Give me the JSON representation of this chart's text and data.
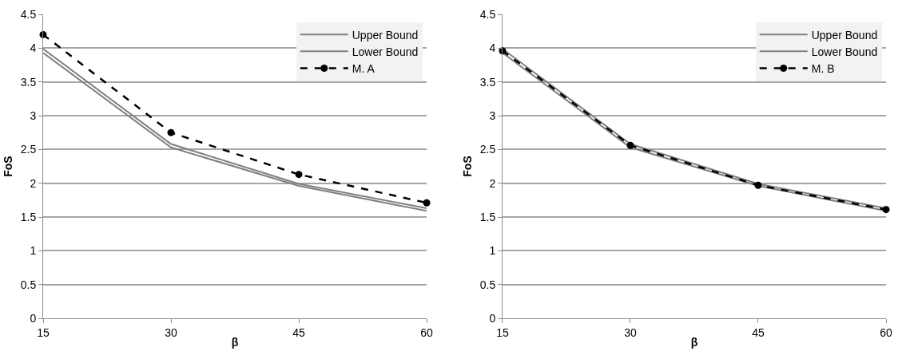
{
  "chart_data": [
    {
      "type": "line",
      "xlabel": "β",
      "ylabel": "FoS",
      "x": [
        15,
        30,
        45,
        60
      ],
      "xlim": [
        15,
        60
      ],
      "xticks": [
        15,
        30,
        45,
        60
      ],
      "ylim": [
        0,
        4.5
      ],
      "yticks": [
        0,
        0.5,
        1,
        1.5,
        2,
        2.5,
        3,
        3.5,
        4,
        4.5
      ],
      "grid": "y",
      "legend": "top right",
      "series": [
        {
          "name": "Upper Bound",
          "color": "#7f7f7f",
          "values": [
            3.99,
            2.58,
            1.99,
            1.63
          ],
          "marker": "none",
          "line_style": "solid"
        },
        {
          "name": "Lower Bound",
          "color": "#7f7f7f",
          "values": [
            3.93,
            2.53,
            1.96,
            1.59
          ],
          "marker": "none",
          "line_style": "solid"
        },
        {
          "name": "M. A",
          "color": "#000000",
          "values": [
            4.2,
            2.75,
            2.13,
            1.71
          ],
          "marker": "circle",
          "line_style": "dashed"
        }
      ]
    },
    {
      "type": "line",
      "xlabel": "β",
      "ylabel": "FoS",
      "x": [
        15,
        30,
        45,
        60
      ],
      "xlim": [
        15,
        60
      ],
      "xticks": [
        15,
        30,
        45,
        60
      ],
      "ylim": [
        0,
        4.5
      ],
      "yticks": [
        0,
        0.5,
        1,
        1.5,
        2,
        2.5,
        3,
        3.5,
        4,
        4.5
      ],
      "grid": "y",
      "legend": "top right",
      "series": [
        {
          "name": "Upper Bound",
          "color": "#7f7f7f",
          "values": [
            3.99,
            2.58,
            1.99,
            1.63
          ],
          "marker": "none",
          "line_style": "solid"
        },
        {
          "name": "Lower Bound",
          "color": "#7f7f7f",
          "values": [
            3.93,
            2.53,
            1.96,
            1.59
          ],
          "marker": "none",
          "line_style": "solid"
        },
        {
          "name": "M. B",
          "color": "#000000",
          "values": [
            3.96,
            2.56,
            1.97,
            1.61
          ],
          "marker": "circle",
          "line_style": "dashed"
        }
      ]
    }
  ]
}
